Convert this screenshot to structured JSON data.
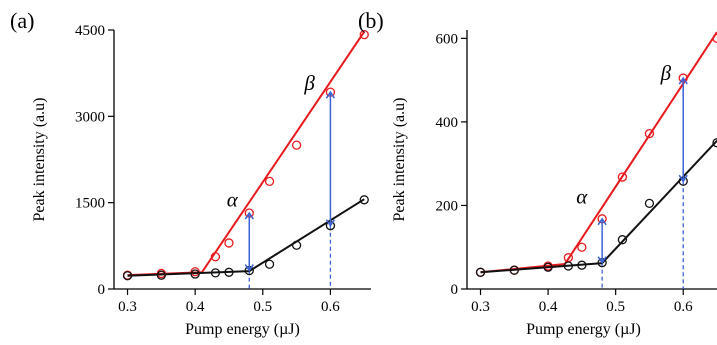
{
  "chart_data": [
    {
      "type": "scatter",
      "panel_label": "(a)",
      "xlabel": "Pump energy (µJ)",
      "ylabel": "Peak intensity (a.u)",
      "xlim": [
        0.28,
        0.66
      ],
      "ylim": [
        0,
        4500
      ],
      "xticks": [
        0.3,
        0.4,
        0.5,
        0.6
      ],
      "yticks": [
        0,
        1500,
        3000,
        4500
      ],
      "grid": false,
      "colors": {
        "series1": "#e8191c",
        "series2": "#111111",
        "arrow": "#3b63d6"
      },
      "series": [
        {
          "color": "#e8191c",
          "x": [
            0.3,
            0.35,
            0.4,
            0.43,
            0.45,
            0.48,
            0.51,
            0.55,
            0.6,
            0.65
          ],
          "y": [
            240,
            270,
            300,
            560,
            800,
            1320,
            1870,
            2500,
            3420,
            4420
          ],
          "fit": [
            [
              0.3,
              240
            ],
            [
              0.41,
              290
            ],
            [
              0.65,
              4470
            ]
          ]
        },
        {
          "color": "#111111",
          "x": [
            0.3,
            0.35,
            0.4,
            0.43,
            0.45,
            0.48,
            0.51,
            0.55,
            0.6,
            0.65
          ],
          "y": [
            230,
            240,
            260,
            280,
            290,
            320,
            430,
            760,
            1100,
            1550
          ],
          "fit": [
            [
              0.3,
              230
            ],
            [
              0.48,
              310
            ],
            [
              0.65,
              1560
            ]
          ]
        }
      ],
      "annotations": [
        {
          "label": "α",
          "x": 0.48,
          "y_low": 320,
          "y_high": 1320,
          "label_x": 0.463,
          "label_y": 1430
        },
        {
          "label": "β",
          "x": 0.6,
          "y_low": 1100,
          "y_high": 3420,
          "label_x": 0.577,
          "label_y": 3460
        }
      ]
    },
    {
      "type": "scatter",
      "panel_label": "(b)",
      "xlabel": "Pump energy (µJ)",
      "ylabel": "Peak intensity (a.u)",
      "xlim": [
        0.28,
        0.65
      ],
      "ylim": [
        0,
        620
      ],
      "xticks": [
        0.3,
        0.4,
        0.5,
        0.6
      ],
      "yticks": [
        0,
        200,
        400,
        600
      ],
      "grid": false,
      "colors": {
        "series1": "#e8191c",
        "series2": "#111111",
        "arrow": "#3b63d6"
      },
      "series": [
        {
          "color": "#e8191c",
          "x": [
            0.3,
            0.35,
            0.4,
            0.43,
            0.45,
            0.48,
            0.51,
            0.55,
            0.6,
            0.65
          ],
          "y": [
            40,
            45,
            55,
            75,
            100,
            168,
            268,
            372,
            505,
            600
          ],
          "fit": [
            [
              0.3,
              40
            ],
            [
              0.425,
              60
            ],
            [
              0.65,
              615
            ]
          ]
        },
        {
          "color": "#111111",
          "x": [
            0.3,
            0.35,
            0.4,
            0.43,
            0.45,
            0.48,
            0.51,
            0.55,
            0.6,
            0.65
          ],
          "y": [
            40,
            45,
            52,
            55,
            57,
            63,
            118,
            205,
            258,
            350
          ],
          "fit": [
            [
              0.3,
              40
            ],
            [
              0.48,
              62
            ],
            [
              0.65,
              355
            ]
          ]
        }
      ],
      "annotations": [
        {
          "label": "α",
          "x": 0.48,
          "y_low": 63,
          "y_high": 168,
          "label_x": 0.458,
          "label_y": 205
        },
        {
          "label": "β",
          "x": 0.6,
          "y_low": 258,
          "y_high": 505,
          "label_x": 0.582,
          "label_y": 500
        }
      ]
    }
  ]
}
